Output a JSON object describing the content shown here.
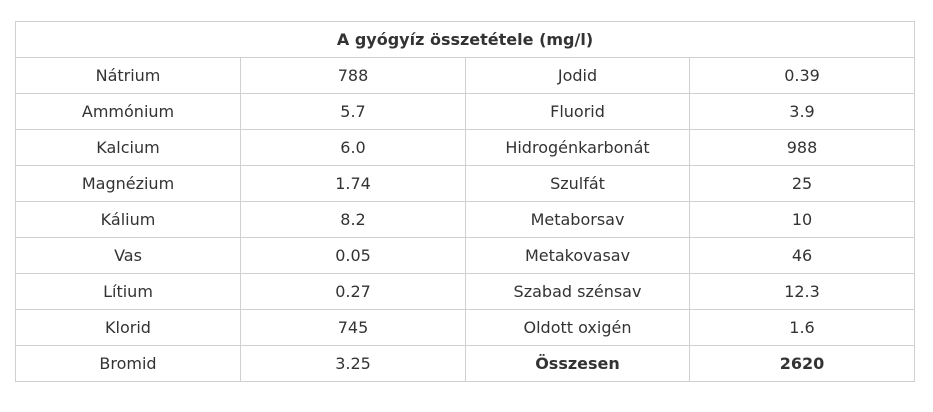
{
  "table": {
    "title": "A gyógyíz összetétele (mg/l)",
    "rows": [
      [
        "Nátrium",
        "788",
        "Jodid",
        "0.39"
      ],
      [
        "Ammónium",
        "5.7",
        "Fluorid",
        "3.9"
      ],
      [
        "Kalcium",
        "6.0",
        "Hidrogénkarbonát",
        "988"
      ],
      [
        "Magnézium",
        "1.74",
        "Szulfát",
        "25"
      ],
      [
        "Kálium",
        "8.2",
        "Metaborsav",
        "10"
      ],
      [
        "Vas",
        "0.05",
        "Metakovasav",
        "46"
      ],
      [
        "Lítium",
        "0.27",
        "Szabad szénsav",
        "12.3"
      ],
      [
        "Klorid",
        "745",
        "Oldott oxigén",
        "1.6"
      ],
      [
        "Bromid",
        "3.25",
        "Összesen",
        "2620"
      ]
    ]
  }
}
